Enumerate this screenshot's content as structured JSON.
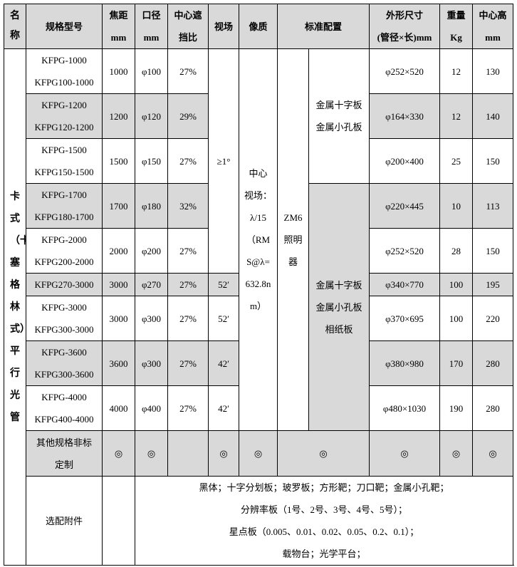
{
  "headers": {
    "name": "名称",
    "model": "规格型号",
    "focal": "焦距\nmm",
    "aperture": "口径\nmm",
    "obstruction": "中心遮\n挡比",
    "fov": "视场",
    "quality": "像质",
    "standard": "标准配置",
    "dimensions": "外形尺寸\n(管径×长)mm",
    "weight": "重量\nKg",
    "height": "中心高\nmm"
  },
  "product_name": "卡式（卡塞格林式）平行光管",
  "fov_group": "≥1°",
  "quality_text": "中心\n视场：\nλ/15\n（RM\nS@λ=\n632.8n\nm）",
  "illuminator": "ZM6\n照明\n器",
  "standard_config_a": "金属十字板\n金属小孔板",
  "standard_config_b": "金属十字板\n金属小孔板\n相纸板",
  "rows": [
    {
      "model": "KFPG-1000\nKFPG100-1000",
      "focal": "1000",
      "aperture": "φ100",
      "obstruction": "27%",
      "dims": "φ252×520",
      "weight": "12",
      "height": "130"
    },
    {
      "model": "KFPG-1200\nKFPG120-1200",
      "focal": "1200",
      "aperture": "φ120",
      "obstruction": "29%",
      "dims": "φ164×330",
      "weight": "12",
      "height": "140"
    },
    {
      "model": "KFPG-1500\nKFPG150-1500",
      "focal": "1500",
      "aperture": "φ150",
      "obstruction": "27%",
      "dims": "φ200×400",
      "weight": "25",
      "height": "150"
    },
    {
      "model": "KFPG-1700\nKFPG180-1700",
      "focal": "1700",
      "aperture": "φ180",
      "obstruction": "32%",
      "dims": "φ220×445",
      "weight": "10",
      "height": "113"
    },
    {
      "model": "KFPG-2000\nKFPG200-2000",
      "focal": "2000",
      "aperture": "φ200",
      "obstruction": "27%",
      "dims": "φ252×520",
      "weight": "28",
      "height": "150"
    },
    {
      "model": "KFPG270-3000",
      "focal": "3000",
      "aperture": "φ270",
      "obstruction": "27%",
      "fov": "52′",
      "dims": "φ340×770",
      "weight": "100",
      "height": "195"
    },
    {
      "model": "KFPG-3000\nKFPG300-3000",
      "focal": "3000",
      "aperture": "φ300",
      "obstruction": "27%",
      "fov": "52′",
      "dims": "φ370×695",
      "weight": "100",
      "height": "220"
    },
    {
      "model": "KFPG-3600\nKFPG300-3600",
      "focal": "3600",
      "aperture": "φ300",
      "obstruction": "27%",
      "fov": "42′",
      "dims": "φ380×980",
      "weight": "170",
      "height": "280"
    },
    {
      "model": "KFPG-4000\nKFPG400-4000",
      "focal": "4000",
      "aperture": "φ400",
      "obstruction": "27%",
      "fov": "42′",
      "dims": "φ480×1030",
      "weight": "190",
      "height": "280"
    }
  ],
  "custom": {
    "label": "其他规格非标\n定制",
    "mark": "◎"
  },
  "accessories": {
    "label": "选配附件",
    "lines": [
      "黑体；十字分划板；玻罗板；方形靶；刀口靶；金属小孔靶；",
      "分辨率板（1号、2号、3号、4号、5号）；",
      "星点板（0.005、0.01、0.02、0.05、0.2、0.1）；",
      "载物台；光学平台；"
    ]
  },
  "colors": {
    "shade": "#d9d9d9",
    "border": "#000000"
  }
}
